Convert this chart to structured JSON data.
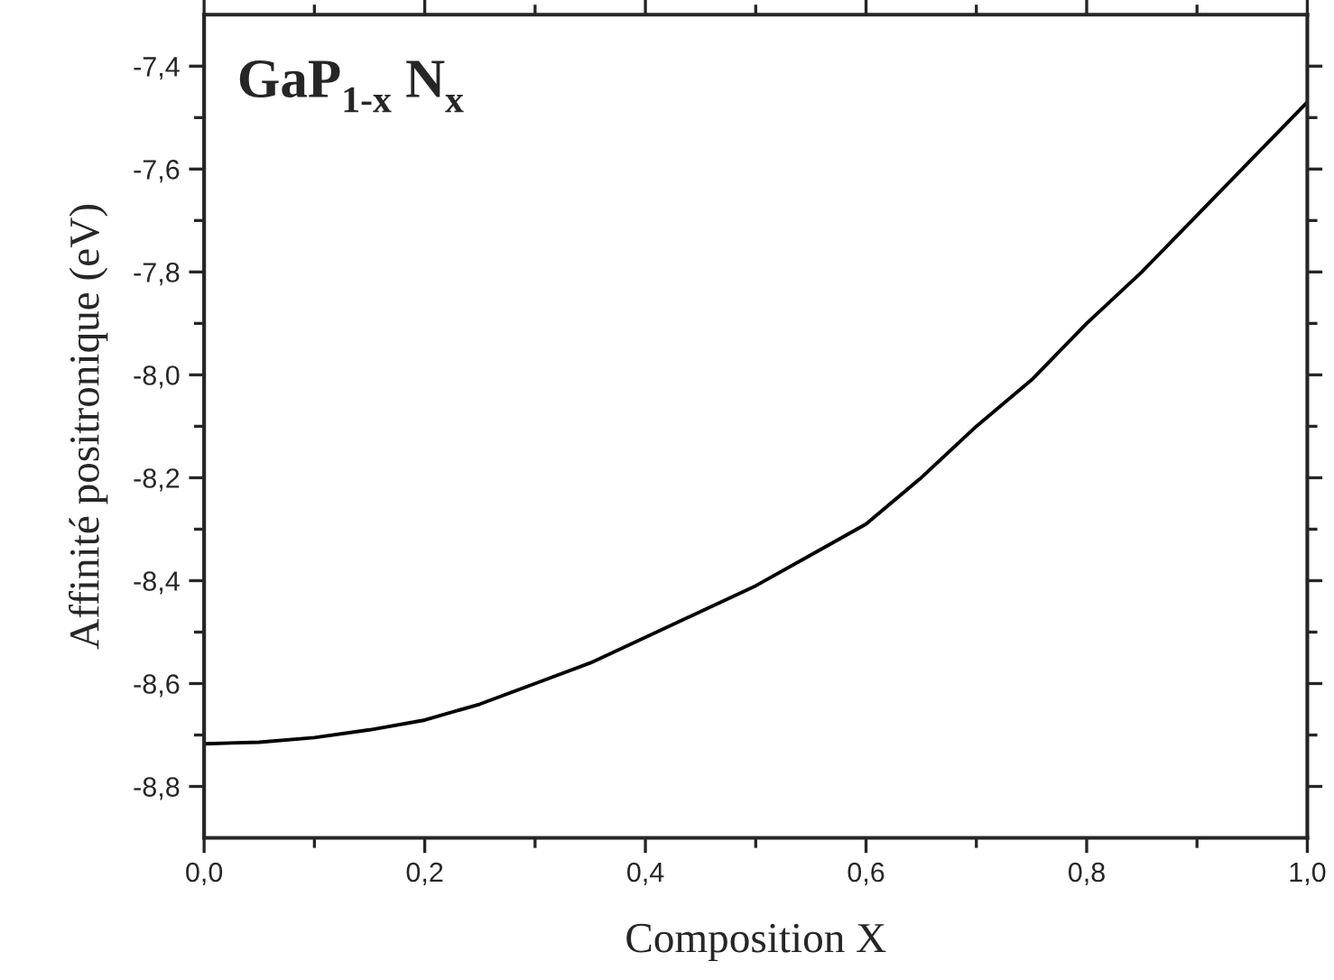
{
  "chart_data": {
    "type": "line",
    "xlabel": "Composition X",
    "ylabel": "Affinité positronique (eV)",
    "annotations": [
      "GaP$_{1-x}$ N$_{x}$"
    ],
    "x": [
      0,
      0.05,
      0.1,
      0.15,
      0.2,
      0.25,
      0.3,
      0.35,
      0.4,
      0.45,
      0.5,
      0.55,
      0.6,
      0.65,
      0.7,
      0.75,
      0.8,
      0.85,
      0.9,
      0.95,
      1.0
    ],
    "series": [
      {
        "color": "#000000",
        "values": [
          -8.717,
          -8.714,
          -8.705,
          -8.69,
          -8.671,
          -8.64,
          -8.6,
          -8.56,
          -8.51,
          -8.46,
          -8.41,
          -8.35,
          -8.29,
          -8.2,
          -8.1,
          -8.01,
          -7.9,
          -7.8,
          -7.69,
          -7.58,
          -7.47
        ]
      }
    ],
    "xlim": [
      0,
      1.0
    ],
    "ylim": [
      -8.9,
      -7.3
    ],
    "xticks": [
      {
        "value": 0,
        "label": "0,0"
      },
      {
        "value": 0.2,
        "label": "0,2"
      },
      {
        "value": 0.4,
        "label": "0,4"
      },
      {
        "value": 0.6,
        "label": "0,6"
      },
      {
        "value": 0.8,
        "label": "0,8"
      },
      {
        "value": 1.0,
        "label": "1,0"
      }
    ],
    "yticks": [
      {
        "value": -8.8,
        "label": "-8,8"
      },
      {
        "value": -8.6,
        "label": "-8,6"
      },
      {
        "value": -8.4,
        "label": "-8,4"
      },
      {
        "value": -8.2,
        "label": "-8,2"
      },
      {
        "value": -8.0,
        "label": "-8,0"
      },
      {
        "value": -7.8,
        "label": "-7,8"
      },
      {
        "value": -7.6,
        "label": "-7,6"
      },
      {
        "value": -7.4,
        "label": "-7,4"
      }
    ],
    "grid": false,
    "legend": false,
    "marker": "none",
    "line_style": "solid"
  }
}
